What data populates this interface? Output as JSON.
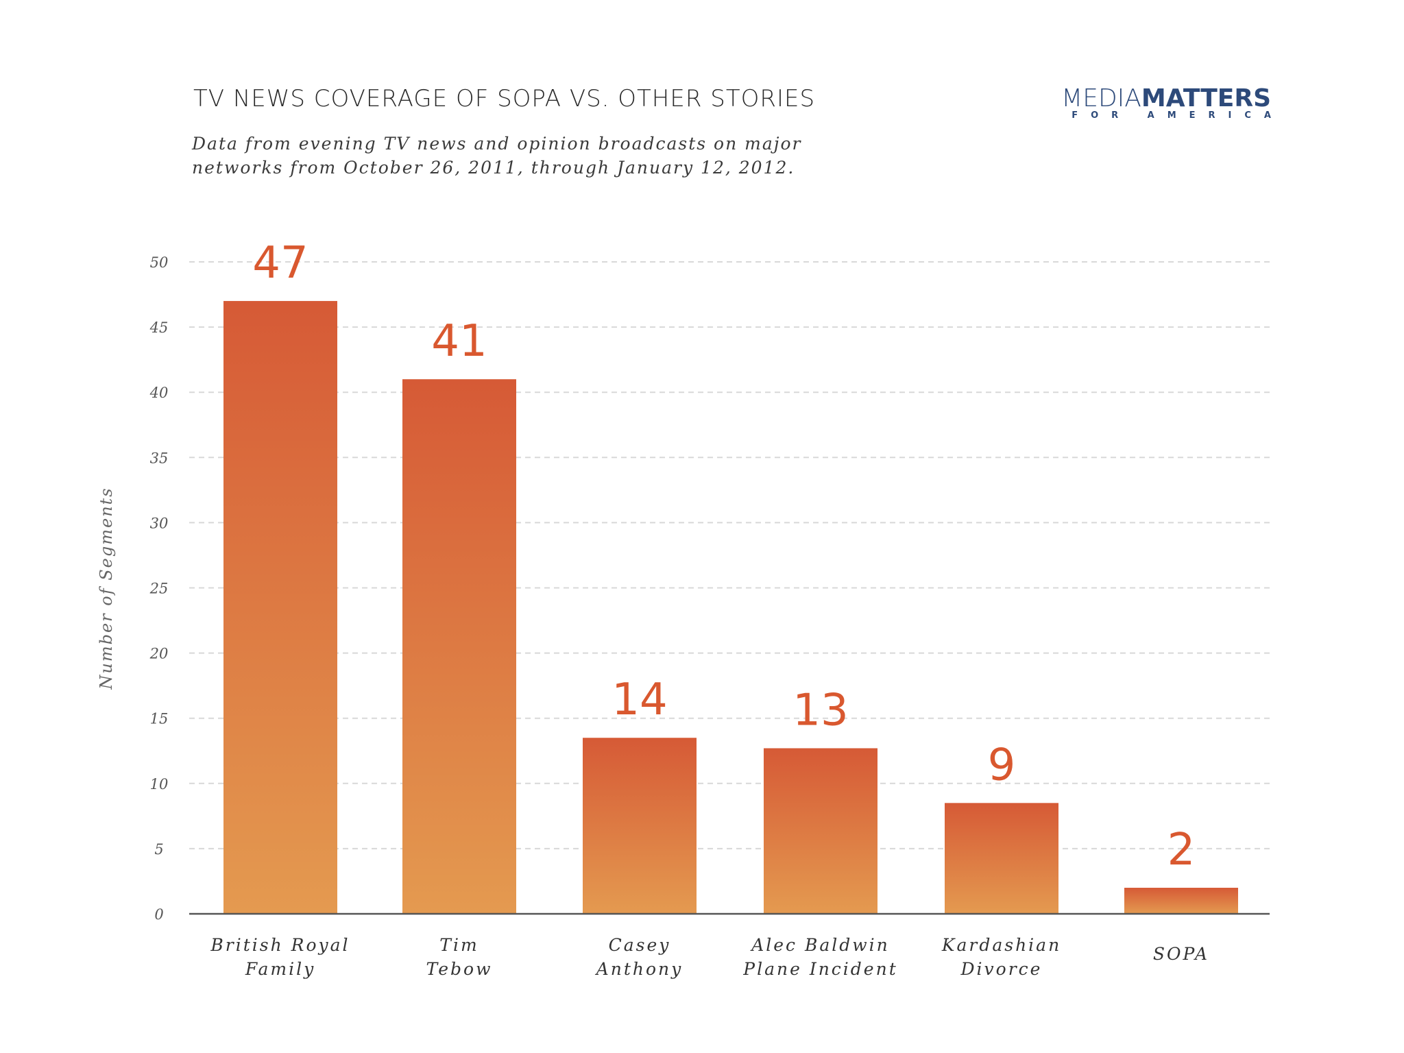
{
  "header": {
    "title": "TV NEWS COVERAGE OF SOPA VS. OTHER STORIES",
    "subtitle": "Data from evening TV news and opinion broadcasts on major networks from October 26, 2011, through January 12, 2012."
  },
  "logo": {
    "word_light": "MEDIA",
    "word_bold": "MATTERS",
    "tagline": "FOR AMERICA"
  },
  "colors": {
    "bar_top": "#d65a36",
    "bar_bottom": "#e49a50",
    "value_label": "#d9582f",
    "logo": "#2d4a7a",
    "gridline": "#d8d8d8",
    "axis": "#555555"
  },
  "chart_data": {
    "type": "bar",
    "title": "TV NEWS COVERAGE OF SOPA VS. OTHER STORIES",
    "xlabel": "",
    "ylabel": "Number of Segments",
    "categories": [
      [
        "British Royal",
        "Family"
      ],
      [
        "Tim",
        "Tebow"
      ],
      [
        "Casey",
        "Anthony"
      ],
      [
        "Alec Baldwin",
        "Plane Incident"
      ],
      [
        "Kardashian",
        "Divorce"
      ],
      [
        "SOPA"
      ]
    ],
    "values": [
      47,
      41,
      14,
      13,
      9,
      2
    ],
    "bar_heights": [
      47,
      41,
      13.5,
      12.7,
      8.5,
      2
    ],
    "value_labels": [
      "47",
      "41",
      "14",
      "13",
      "9",
      "2"
    ],
    "ylim": [
      0,
      50
    ],
    "yticks": [
      0,
      5,
      10,
      15,
      20,
      25,
      30,
      35,
      40,
      45,
      50
    ],
    "grid": true,
    "legend": "none"
  }
}
